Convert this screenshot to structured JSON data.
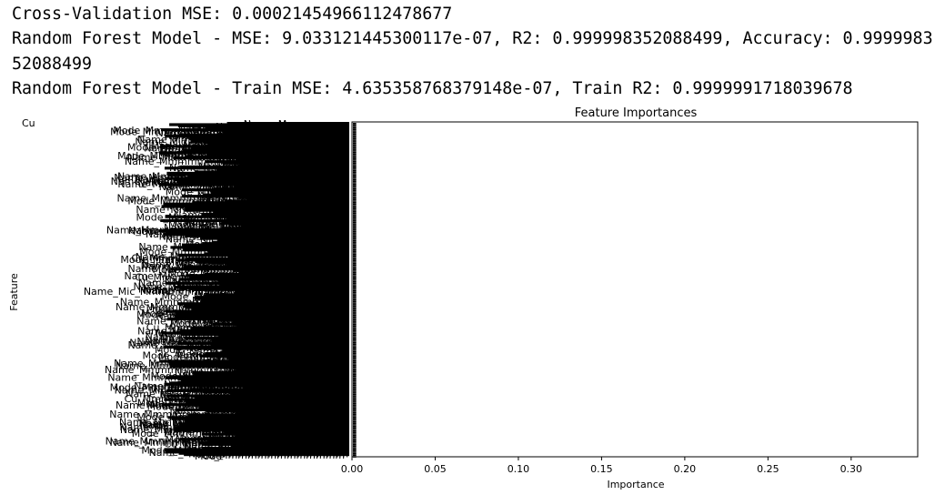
{
  "console": {
    "lines": [
      "Cross-Validation MSE: 0.00021454966112478677",
      "Random Forest Model - MSE: 9.033121445300117e-07, R2: 0.999998352088499, Accuracy: 0.999998352088499",
      "Random Forest Model - Train MSE: 4.635358768379148e-07, Train R2: 0.9999991718039678"
    ]
  },
  "chart_data": {
    "type": "bar",
    "orientation": "horizontal",
    "title": "Feature Importances",
    "xlabel": "Importance",
    "ylabel": "Feature",
    "xlim": [
      0,
      0.34
    ],
    "x_ticks": [
      "0.00",
      "0.05",
      "0.10",
      "0.15",
      "0.20",
      "0.25",
      "0.30"
    ],
    "x_tick_values": [
      0,
      0.05,
      0.1,
      0.15,
      0.2,
      0.25,
      0.3
    ],
    "categories_visible": [
      "Name_Mic",
      "Mode",
      "Mode",
      "Mode",
      "Mode",
      "Mode",
      "Mode",
      "Name",
      "Name",
      "Name",
      "Name",
      "Name",
      "Name",
      "Name",
      "Name",
      "Name",
      "Cu"
    ],
    "values_visible": [
      0.002,
      0.002,
      0.002,
      0.002,
      0.002,
      0.002,
      0.002,
      0.002,
      0.002,
      0.002,
      0.002,
      0.002,
      0.002,
      0.002,
      0.002,
      0.002,
      0.002
    ],
    "note_overlapping_labels": "hundreds of overlapping y-axis labels rendered as a solid black block",
    "bar_color": "#000000"
  }
}
